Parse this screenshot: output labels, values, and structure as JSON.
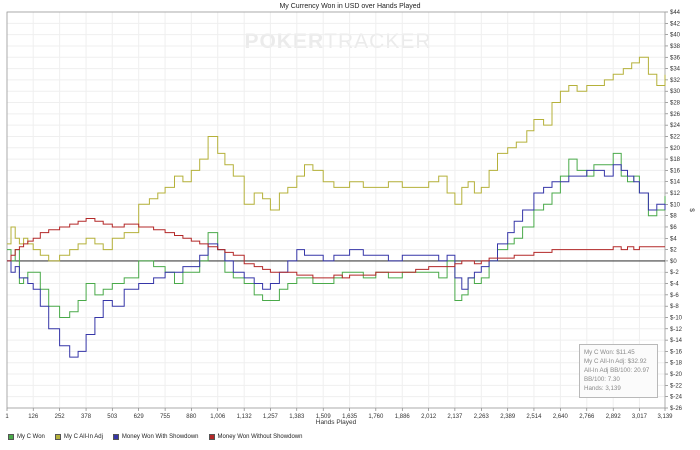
{
  "watermark": {
    "text_bold": "POKER",
    "text_light": "TRACKER"
  },
  "stats": {
    "lines": [
      "My C Won: $11.45",
      "My C All-In Adj: $32.92",
      "All-In Adj BB/100: 20.97",
      "BB/100: 7.30",
      "Hands: 3,139"
    ]
  },
  "colors": {
    "background": "#ffffff",
    "grid": "#efefef",
    "frame": "#9a9a9a",
    "zero_line": "#444444"
  },
  "chart_data": {
    "type": "line",
    "title": "My Currency Won in USD over Hands Played",
    "xlabel": "Hands Played",
    "ylabel": "$",
    "xlim": [
      1,
      3139
    ],
    "ylim": [
      -26,
      44
    ],
    "x_ticks": [
      1,
      126,
      252,
      378,
      503,
      629,
      755,
      880,
      1006,
      1132,
      1257,
      1383,
      1509,
      1635,
      1760,
      1886,
      2012,
      2137,
      2263,
      2389,
      2514,
      2640,
      2766,
      2892,
      3017,
      3139
    ],
    "y_ticks": [
      44,
      42,
      40,
      38,
      36,
      34,
      32,
      30,
      28,
      26,
      24,
      22,
      20,
      18,
      16,
      14,
      12,
      10,
      8,
      6,
      4,
      2,
      0,
      -2,
      -4,
      -6,
      -8,
      -10,
      -12,
      -14,
      -16,
      -18,
      -20,
      -22,
      -24,
      -26
    ],
    "y_tick_labels": [
      "$44",
      "$42",
      "$40",
      "$38",
      "$36",
      "$34",
      "$32",
      "$30",
      "$28",
      "$26",
      "$24",
      "$22",
      "$20",
      "$18",
      "$16",
      "$14",
      "$12",
      "$10",
      "$8",
      "$6",
      "$4",
      "$2",
      "$0",
      "$-2",
      "$-4",
      "$-6",
      "$-8",
      "$-10",
      "$-12",
      "$-14",
      "$-16",
      "$-18",
      "$-20",
      "$-22",
      "$-24",
      "$-26"
    ],
    "x_tick_labels": [
      "1",
      "126",
      "252",
      "378",
      "503",
      "629",
      "755",
      "880",
      "1,006",
      "1,132",
      "1,257",
      "1,383",
      "1,509",
      "1,635",
      "1,760",
      "1,886",
      "2,012",
      "2,137",
      "2,263",
      "2,389",
      "2,514",
      "2,640",
      "2,766",
      "2,892",
      "3,017",
      "3,139"
    ],
    "grid": true,
    "legend_position": "bottom-left",
    "series": [
      {
        "name": "My C Won",
        "color": "#4aaa4a",
        "x": [
          1,
          20,
          40,
          60,
          80,
          100,
          126,
          160,
          200,
          252,
          300,
          340,
          378,
          420,
          460,
          503,
          560,
          629,
          700,
          755,
          800,
          840,
          880,
          920,
          960,
          1006,
          1040,
          1080,
          1132,
          1180,
          1220,
          1257,
          1300,
          1340,
          1383,
          1420,
          1460,
          1509,
          1560,
          1600,
          1635,
          1700,
          1760,
          1820,
          1886,
          1950,
          2012,
          2060,
          2100,
          2137,
          2170,
          2200,
          2230,
          2263,
          2300,
          2340,
          2389,
          2420,
          2460,
          2514,
          2560,
          2600,
          2640,
          2680,
          2720,
          2766,
          2800,
          2850,
          2892,
          2930,
          2960,
          2990,
          3017,
          3060,
          3100,
          3139
        ],
        "y": [
          2,
          0,
          2,
          -4,
          -3,
          -2,
          -2,
          -5,
          -8,
          -10,
          -9,
          -7,
          -4,
          -6,
          -5,
          -4,
          -3,
          0,
          -1,
          -2,
          -4,
          -2,
          -2,
          0,
          5,
          2,
          -2,
          -3,
          -4,
          -6,
          -7,
          -7,
          -5,
          -4,
          -3,
          -3,
          -4,
          -4,
          -3,
          -2,
          -2,
          -3,
          -2,
          -3,
          -2,
          -2,
          -2,
          -3,
          0,
          -7,
          -6,
          -3,
          -4,
          -3,
          0,
          2,
          3,
          4,
          6,
          9,
          10,
          12,
          15,
          18,
          16,
          15,
          17,
          17,
          19,
          15,
          14,
          15,
          12,
          8,
          9,
          11.45
        ]
      },
      {
        "name": "My C All-In Adj",
        "color": "#b5b13a",
        "x": [
          1,
          20,
          40,
          60,
          80,
          100,
          126,
          160,
          200,
          252,
          300,
          340,
          378,
          420,
          460,
          503,
          560,
          629,
          680,
          720,
          755,
          800,
          840,
          880,
          920,
          960,
          1006,
          1040,
          1080,
          1132,
          1180,
          1220,
          1257,
          1300,
          1340,
          1383,
          1420,
          1460,
          1509,
          1560,
          1600,
          1635,
          1700,
          1760,
          1820,
          1886,
          1950,
          2012,
          2060,
          2100,
          2137,
          2170,
          2200,
          2230,
          2263,
          2300,
          2340,
          2389,
          2430,
          2480,
          2514,
          2560,
          2600,
          2640,
          2680,
          2720,
          2766,
          2800,
          2850,
          2892,
          2940,
          2980,
          3017,
          3060,
          3100,
          3139
        ],
        "y": [
          3,
          6,
          4,
          3,
          4,
          3,
          2,
          1,
          0,
          1,
          2,
          3,
          4,
          3,
          2,
          4,
          5,
          10,
          11,
          12,
          13,
          15,
          14,
          16,
          18,
          22,
          19,
          17,
          15,
          10,
          12,
          11,
          9,
          12,
          13,
          15,
          17,
          16,
          14,
          13,
          13,
          14,
          13,
          13,
          14,
          13,
          13,
          14,
          15,
          12,
          10,
          13,
          14,
          12,
          13,
          16,
          19,
          20,
          21,
          23,
          25,
          24,
          28,
          30,
          31,
          30,
          31,
          31,
          32,
          33,
          34,
          35,
          36,
          33,
          31,
          32.92
        ]
      },
      {
        "name": "Money Won With Showdown",
        "color": "#3636a8",
        "x": [
          1,
          20,
          40,
          60,
          80,
          100,
          126,
          160,
          200,
          252,
          300,
          340,
          378,
          420,
          460,
          503,
          560,
          629,
          700,
          755,
          800,
          840,
          880,
          920,
          960,
          1006,
          1040,
          1080,
          1132,
          1180,
          1220,
          1257,
          1300,
          1340,
          1383,
          1420,
          1460,
          1509,
          1560,
          1600,
          1635,
          1700,
          1760,
          1820,
          1886,
          1950,
          2012,
          2060,
          2100,
          2137,
          2170,
          2200,
          2230,
          2263,
          2300,
          2340,
          2389,
          2420,
          2460,
          2514,
          2560,
          2600,
          2640,
          2680,
          2720,
          2766,
          2800,
          2850,
          2892,
          2930,
          2960,
          2990,
          3017,
          3060,
          3100,
          3139
        ],
        "y": [
          0,
          -2,
          -1,
          -3,
          -3,
          -4,
          -5,
          -8,
          -12,
          -15,
          -17,
          -16,
          -13,
          -10,
          -7,
          -8,
          -5,
          -4,
          -3,
          -2,
          -2,
          -1,
          -1,
          1,
          3,
          2,
          0,
          -2,
          -3,
          -4,
          -5,
          -4,
          -2,
          0,
          2,
          1,
          1,
          0,
          1,
          1,
          2,
          1,
          1,
          0,
          1,
          1,
          1,
          0,
          1,
          -3,
          -5,
          -3,
          -2,
          -1,
          0,
          3,
          5,
          7,
          9,
          12,
          13,
          14,
          14,
          15,
          15,
          16,
          16,
          15,
          17,
          16,
          15,
          14,
          12,
          9,
          10,
          9
        ]
      },
      {
        "name": "Money Won Without Showdown",
        "color": "#b32828",
        "x": [
          1,
          20,
          40,
          60,
          80,
          100,
          126,
          160,
          200,
          252,
          300,
          340,
          378,
          420,
          460,
          503,
          560,
          629,
          700,
          755,
          800,
          840,
          880,
          920,
          960,
          1006,
          1040,
          1080,
          1132,
          1180,
          1220,
          1257,
          1300,
          1340,
          1383,
          1420,
          1460,
          1509,
          1560,
          1600,
          1635,
          1700,
          1760,
          1820,
          1886,
          1950,
          2012,
          2060,
          2100,
          2137,
          2170,
          2200,
          2230,
          2263,
          2300,
          2340,
          2389,
          2420,
          2460,
          2514,
          2560,
          2600,
          2640,
          2680,
          2720,
          2766,
          2800,
          2850,
          2892,
          2930,
          2960,
          2990,
          3017,
          3060,
          3100,
          3139
        ],
        "y": [
          0,
          1,
          2,
          2.5,
          3,
          3.5,
          4,
          5,
          5.5,
          6,
          6.5,
          7,
          7.5,
          7,
          6.5,
          6,
          6.5,
          6,
          5.5,
          5,
          4.5,
          4,
          3.5,
          3,
          2.5,
          2,
          1.5,
          1,
          -0.5,
          -1,
          -1.5,
          -2,
          -2,
          -2,
          -2.5,
          -2.5,
          -3,
          -3,
          -2.5,
          -3,
          -2.5,
          -2.5,
          -2,
          -2,
          -2,
          -1.5,
          -1,
          -1,
          -1,
          -0.5,
          0,
          0,
          -0.5,
          0,
          0.5,
          0.5,
          0.5,
          1,
          1,
          1.5,
          1.5,
          2,
          2,
          2,
          2,
          2,
          2,
          2,
          2.5,
          2,
          2.5,
          2,
          2.5,
          2.5,
          2.5,
          2.5
        ]
      }
    ]
  }
}
